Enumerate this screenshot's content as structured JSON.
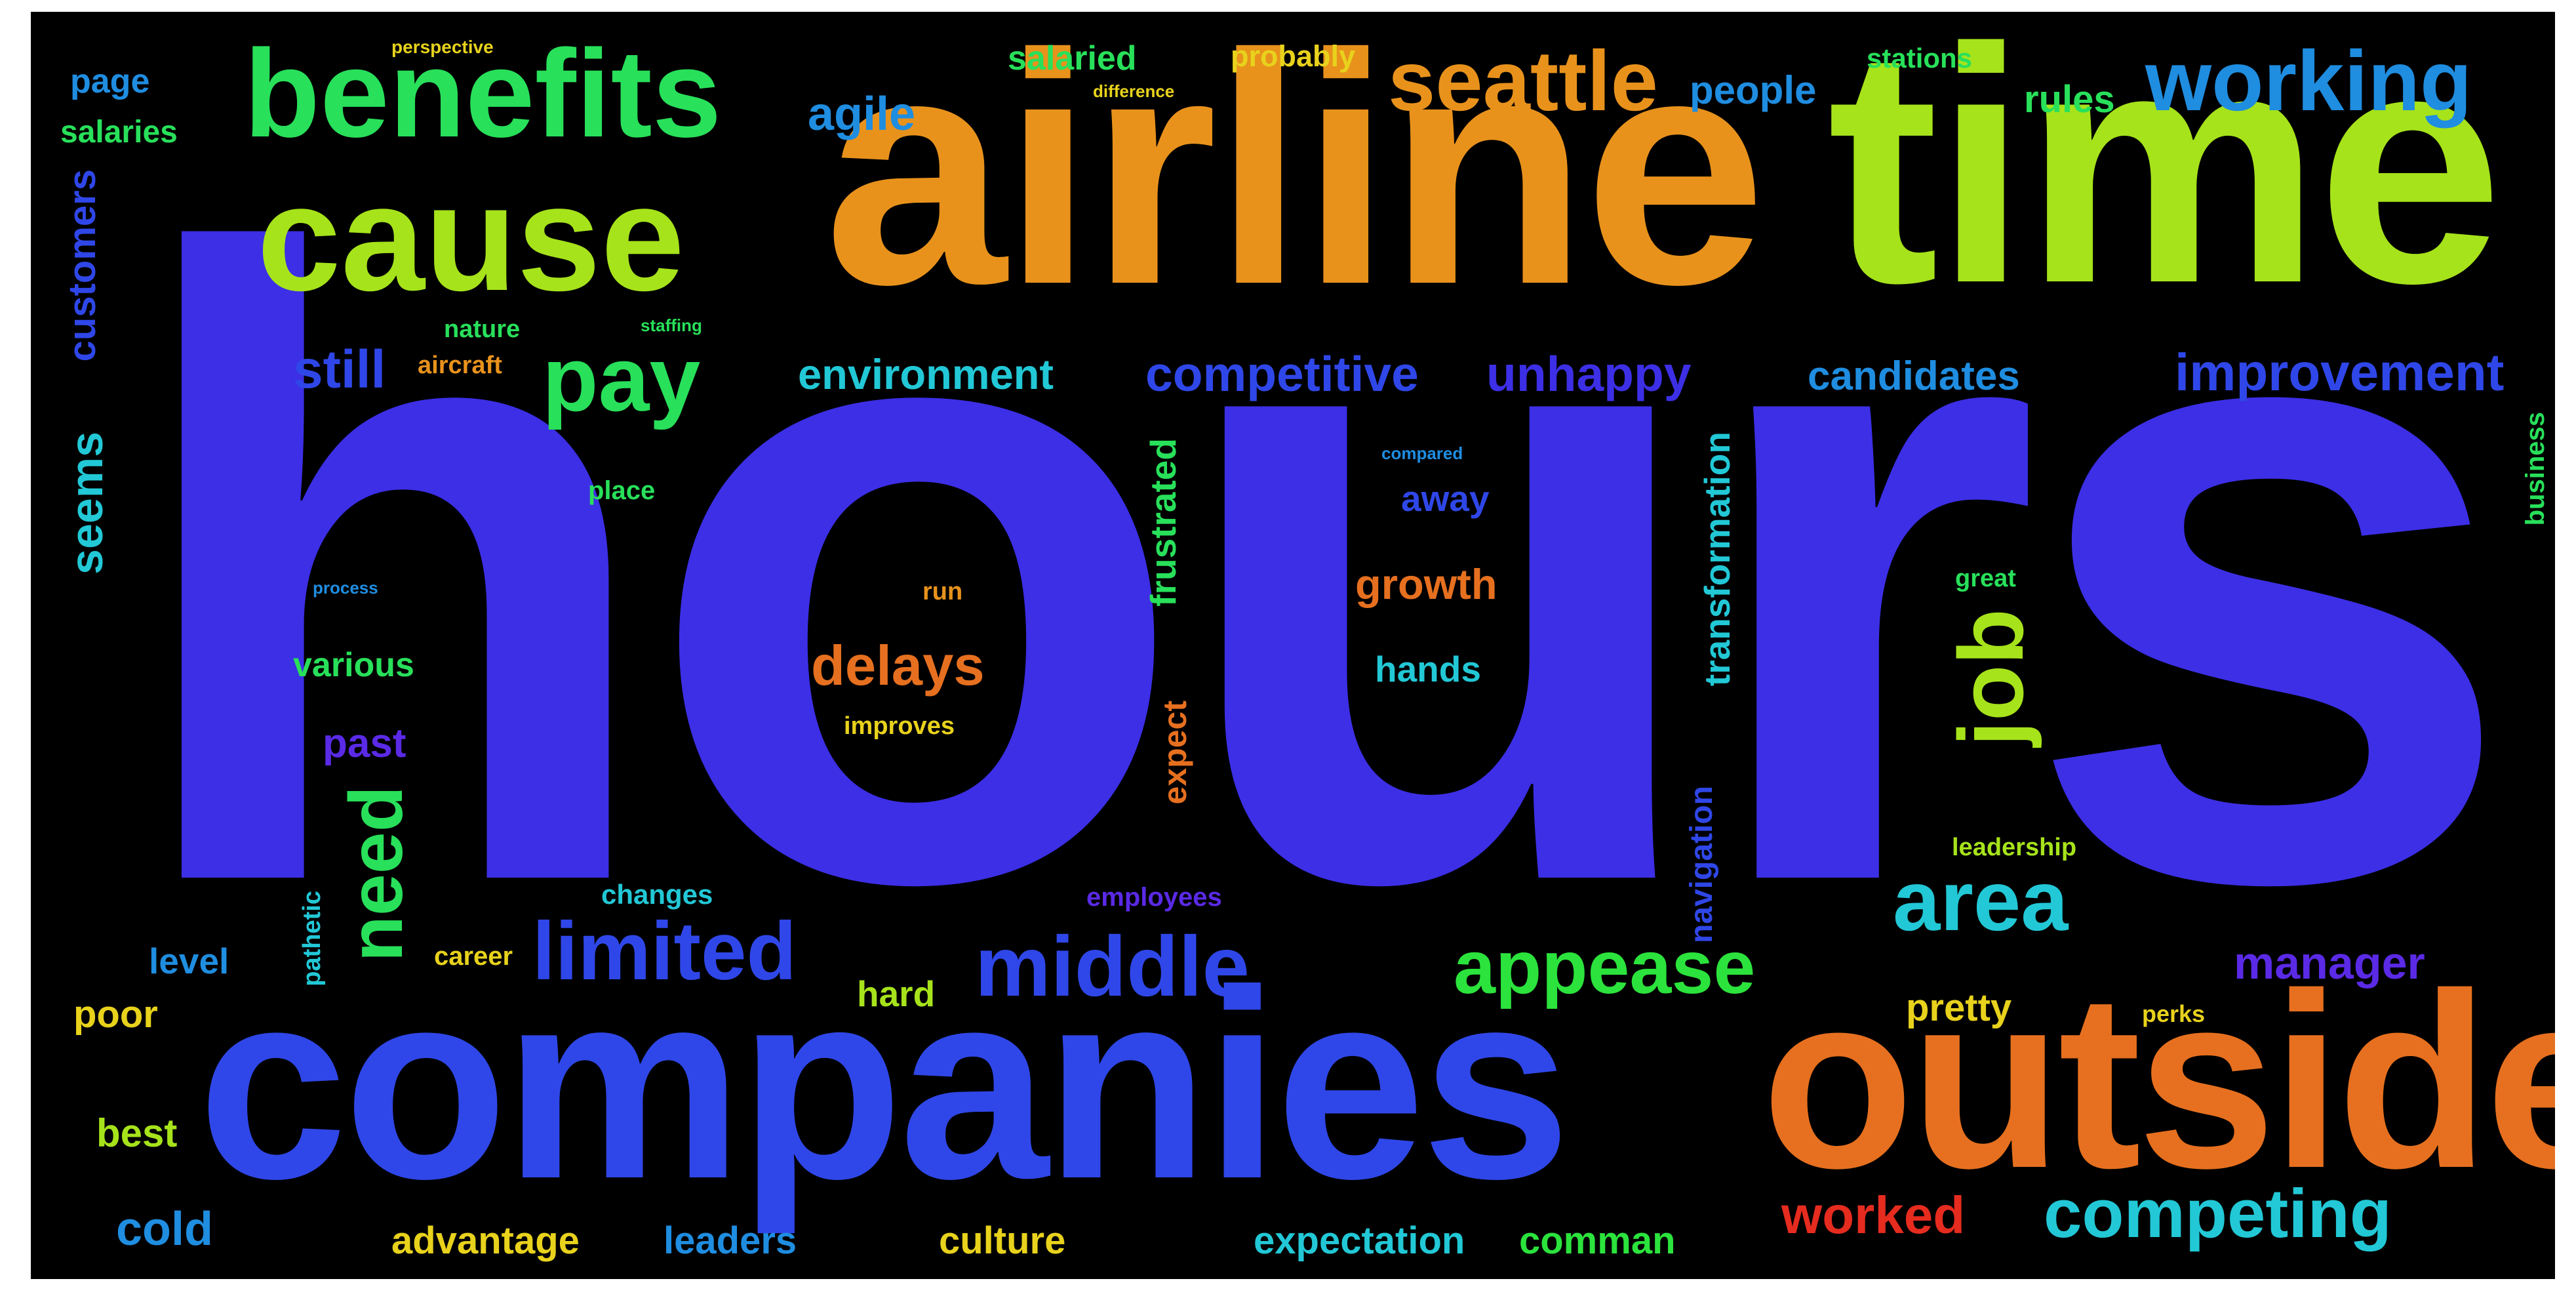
{
  "words": {
    "hours": "hours",
    "airline": "airline",
    "time": "time",
    "companies": "companies",
    "outside": "outside",
    "benefits": "benefits",
    "cause": "cause",
    "seattle": "seattle",
    "working": "working",
    "pay": "pay",
    "job": "job",
    "area": "area",
    "middle": "middle",
    "limited": "limited",
    "appease": "appease",
    "need": "need",
    "competing": "competing",
    "worked": "worked",
    "delays": "delays",
    "competitive": "competitive",
    "unhappy": "unhappy",
    "environment": "environment",
    "candidates": "candidates",
    "improvement": "improvement",
    "still": "still",
    "seems": "seems",
    "customers": "customers",
    "agile": "agile",
    "people": "people",
    "salaried": "salaried",
    "probably": "probably",
    "page": "page",
    "salaries": "salaries",
    "rules": "rules",
    "stations": "stations",
    "growth": "growth",
    "hands": "hands",
    "frustrated": "frustrated",
    "transformation": "transformation",
    "various": "various",
    "past": "past",
    "expect": "expect",
    "navigation": "navigation",
    "manager": "manager",
    "pretty": "pretty",
    "level": "level",
    "poor": "poor",
    "best": "best",
    "cold": "cold",
    "advantage": "advantage",
    "leaders": "leaders",
    "culture": "culture",
    "expectation": "expectation",
    "comman": "comman",
    "hard": "hard",
    "career": "career",
    "changes": "changes",
    "employees": "employees",
    "leadership": "leadership",
    "great": "great",
    "business": "business",
    "pathetic": "pathetic",
    "improves": "improves",
    "away": "away",
    "nature": "nature",
    "aircraft": "aircraft",
    "place": "place",
    "perks": "perks",
    "run": "run",
    "perspective": "perspective",
    "difference": "difference",
    "staffing": "staffing",
    "process": "process",
    "compared": "compared"
  },
  "colors": {
    "blue_violet": "#3c2fe6",
    "royal_blue": "#2f47e8",
    "orange": "#e8921c",
    "dark_orange": "#e6701f",
    "lime": "#a6e31b",
    "green": "#28e05a",
    "bright_green": "#2be33c",
    "sky": "#1f8de0",
    "cyan": "#22c8d6",
    "yellow": "#e8d21c",
    "red": "#e62b1f",
    "violet": "#5a2ae6"
  }
}
